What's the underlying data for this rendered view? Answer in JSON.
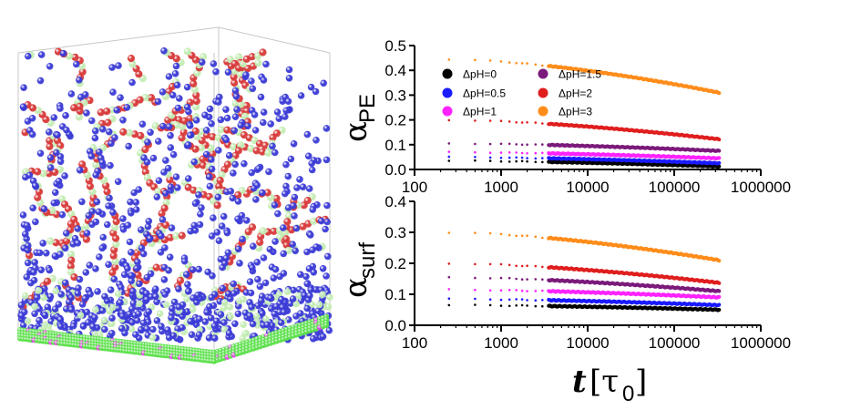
{
  "colors": {
    "polyelectrolyte_red": "#d83a3a",
    "counterion_blue": "#3b3bd6",
    "neutral_green": "#c4ecb4",
    "substrate_green": "#5be04a",
    "substrate_magenta": "#e050e0",
    "box_edge": "#c8c8c8"
  },
  "chart_data": [
    {
      "type": "scatter",
      "id": "top",
      "ylabel": "α",
      "ylabel_subscript": "PE",
      "xscale": "log",
      "xlim": [
        100,
        1000000
      ],
      "ylim": [
        0.0,
        0.5
      ],
      "xticks": [
        "100",
        "1000",
        "10000",
        "100000",
        "1000000"
      ],
      "yticks": [
        "0.0",
        "0.1",
        "0.2",
        "0.3",
        "0.4",
        "0.5"
      ],
      "legend": {
        "placement": "top-left",
        "columns": 2
      },
      "series": [
        {
          "name": "ΔpH=0",
          "color": "#000000",
          "start": 0.035,
          "end": 0.012
        },
        {
          "name": "ΔpH=0.5",
          "color": "#1a1aff",
          "start": 0.05,
          "end": 0.025
        },
        {
          "name": "ΔpH=1",
          "color": "#ff22ff",
          "start": 0.07,
          "end": 0.045
        },
        {
          "name": "ΔpH=1.5",
          "color": "#7b1a7b",
          "start": 0.105,
          "end": 0.075
        },
        {
          "name": "ΔpH=2",
          "color": "#e01e1e",
          "start": 0.2,
          "end": 0.122
        },
        {
          "name": "ΔpH=3",
          "color": "#ff8c1a",
          "start": 0.445,
          "end": 0.31
        }
      ]
    },
    {
      "type": "scatter",
      "id": "bottom",
      "ylabel": "α",
      "ylabel_subscript": "surf",
      "xlabel": "t",
      "xlabel_unit": "[τ",
      "xlabel_unit_sub": "0",
      "xlabel_unit_close": "]",
      "xscale": "log",
      "xlim": [
        100,
        1000000
      ],
      "ylim": [
        0.0,
        0.4
      ],
      "xticks": [
        "100",
        "1000",
        "10000",
        "100000",
        "1000000"
      ],
      "yticks": [
        "0.0",
        "0.1",
        "0.2",
        "0.3",
        "0.4"
      ],
      "series": [
        {
          "color": "#000000",
          "start": 0.065,
          "end": 0.05
        },
        {
          "color": "#1a1aff",
          "start": 0.085,
          "end": 0.065
        },
        {
          "color": "#ff22ff",
          "start": 0.115,
          "end": 0.09
        },
        {
          "color": "#7b1a7b",
          "start": 0.155,
          "end": 0.11
        },
        {
          "color": "#e01e1e",
          "start": 0.2,
          "end": 0.137
        },
        {
          "color": "#ff8c1a",
          "start": 0.3,
          "end": 0.21
        }
      ]
    }
  ]
}
